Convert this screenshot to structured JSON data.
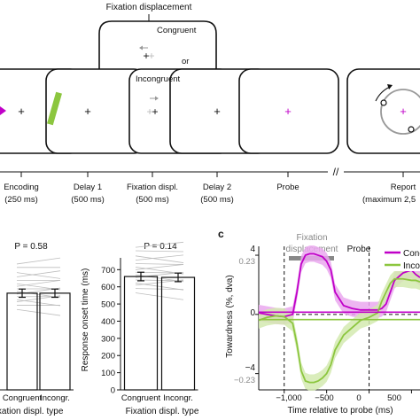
{
  "panel_a": {
    "fixation_displacement_label": "Fixation displacement",
    "congruent_label": "Congruent",
    "or_label": "or",
    "incongruent_label": "Incongruent",
    "fixation_symbol": "+",
    "stages": [
      {
        "name": "Encoding",
        "duration": "(250 ms)"
      },
      {
        "name": "Delay 1",
        "duration": "(500 ms)"
      },
      {
        "name": "Fixation displ.",
        "duration": "(500 ms)"
      },
      {
        "name": "Delay 2",
        "duration": "(500 ms)"
      },
      {
        "name": "Probe",
        "duration": ""
      },
      {
        "name": "Report",
        "duration": "(maximum 2,5"
      }
    ],
    "break_symbol": "//",
    "colors": {
      "magenta": "#c000c8",
      "green": "#8cc63f",
      "gray_arrow": "#999999"
    }
  },
  "panel_b": {
    "charts": [
      {
        "p_label": "P = 0.58",
        "tick_labels": [
          "Congruent",
          "Incongr."
        ],
        "xlabel": "Fixation displ. type",
        "ylabel": "",
        "yticks": []
      },
      {
        "p_label": "P = 0.14",
        "tick_labels": [
          "Congruent",
          "Incongr."
        ],
        "xlabel": "Fixation displ. type",
        "ylabel": "Response onset time (ms)",
        "yticks": [
          "0",
          "100",
          "200",
          "300",
          "400",
          "500",
          "600",
          "700"
        ]
      }
    ]
  },
  "panel_c": {
    "panel_letter": "c",
    "fixation_displacement_label_line1": "Fixation",
    "fixation_displacement_label_line2": "displacement",
    "probe_label": "Probe",
    "legend": [
      "Cong",
      "Inco"
    ],
    "ylabel": "Towardness (%, dva)",
    "xlabel": "Time relative to probe (ms)",
    "ytick_labels": [
      {
        "main": "4",
        "sub": "0.23"
      },
      {
        "main": "0",
        "sub": ""
      },
      {
        "main": "−4",
        "sub": "−0.23"
      }
    ],
    "xtick_labels": [
      "−1,000",
      "−500",
      "0",
      "500"
    ],
    "colors": {
      "congruent": "#c000c8",
      "incongruent": "#8cc63f",
      "congruent_band": "#eaa8ee",
      "incongruent_band": "#d3eab0"
    }
  },
  "chart_data": [
    {
      "type": "bar",
      "categories": [
        "Congruent",
        "Incongr."
      ],
      "values": [
        563,
        563
      ],
      "errors": [
        24,
        24
      ],
      "title": "P = 0.58",
      "xlabel": "Fixation displ. type",
      "ylabel": "",
      "ylim": [
        0,
        810
      ]
    },
    {
      "type": "bar",
      "categories": [
        "Congruent",
        "Incongr."
      ],
      "values": [
        660,
        655
      ],
      "errors": [
        25,
        25
      ],
      "title": "P = 0.14",
      "xlabel": "Fixation displ. type",
      "ylabel": "Response onset time (ms)",
      "ylim": [
        0,
        810
      ]
    },
    {
      "type": "line",
      "xlabel": "Time relative to probe (ms)",
      "ylabel": "Towardness (%, dva)",
      "xlim": [
        -1300,
        600
      ],
      "ylim": [
        -5.1,
        5.2
      ],
      "legend_position": "top-right",
      "series": [
        {
          "name": "Cong",
          "x": [
            -1300,
            -1200,
            -1100,
            -1000,
            -900,
            -850,
            -800,
            -750,
            -700,
            -650,
            -600,
            -550,
            -500,
            -450,
            -400,
            -300,
            -200,
            -100,
            0,
            100,
            150,
            200,
            250,
            300,
            400,
            500,
            550,
            600
          ],
          "y": [
            0.1,
            0,
            -0.1,
            -0.15,
            0,
            1.5,
            3.4,
            4.0,
            4.1,
            4.1,
            4.0,
            3.9,
            3.6,
            3.0,
            1.5,
            0.6,
            0.4,
            0.3,
            0.3,
            0.3,
            0.4,
            0.7,
            1.5,
            2.3,
            2.8,
            3.0,
            2.7,
            2.5
          ]
        },
        {
          "name": "Inco",
          "x": [
            -1300,
            -1200,
            -1100,
            -1000,
            -900,
            -850,
            -800,
            -750,
            -700,
            -650,
            -600,
            -550,
            -500,
            -450,
            -400,
            -300,
            -200,
            -100,
            0,
            100,
            150,
            200,
            250,
            300,
            400,
            500,
            550,
            600
          ],
          "y": [
            -0.4,
            -0.2,
            -0.1,
            -0.15,
            -0.6,
            -2.0,
            -3.8,
            -4.5,
            -4.6,
            -4.6,
            -4.5,
            -4.3,
            -4.0,
            -3.4,
            -2.4,
            -1.4,
            -0.9,
            -0.4,
            -0.2,
            0.1,
            0.9,
            1.5,
            2.1,
            2.4,
            2.4,
            2.3,
            2.3,
            2.2
          ]
        }
      ]
    }
  ]
}
